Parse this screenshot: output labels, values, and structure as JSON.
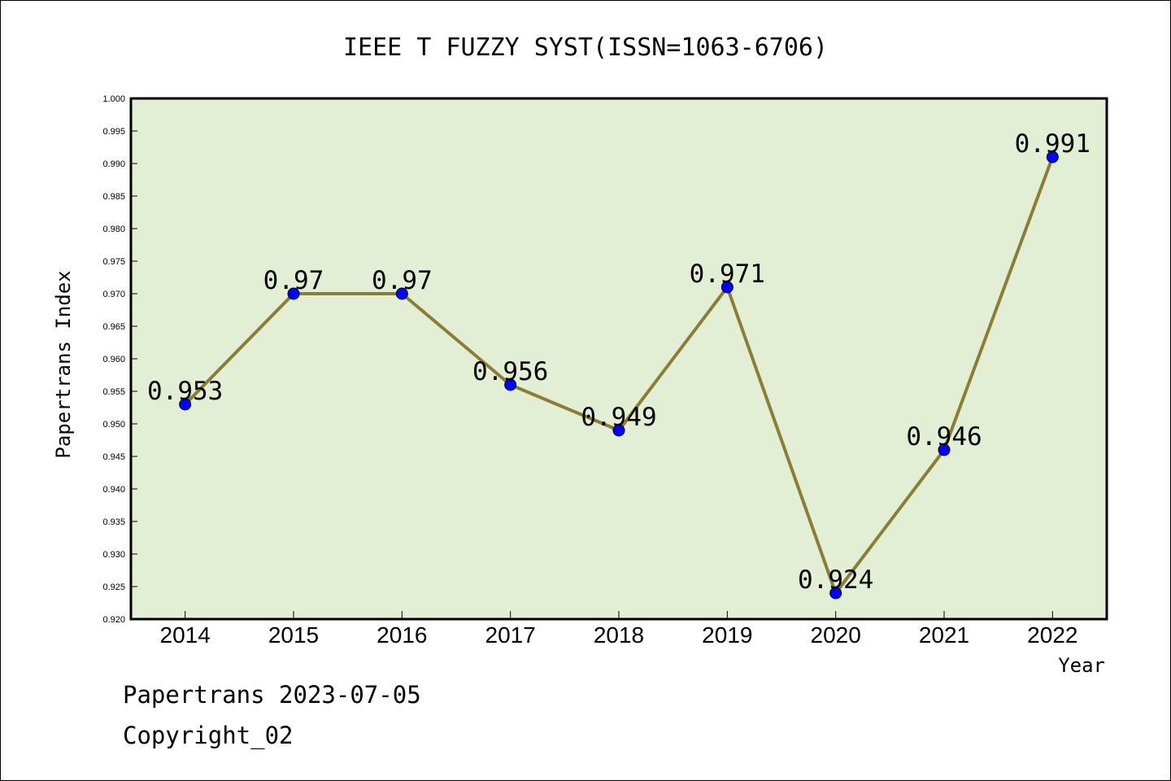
{
  "chart_data": {
    "type": "line",
    "title": "IEEE T FUZZY SYST(ISSN=1063-6706)",
    "xlabel": "Year",
    "ylabel": "Papertrans Index",
    "categories": [
      "2014",
      "2015",
      "2016",
      "2017",
      "2018",
      "2019",
      "2020",
      "2021",
      "2022"
    ],
    "values": [
      0.953,
      0.97,
      0.97,
      0.956,
      0.949,
      0.971,
      0.924,
      0.946,
      0.991
    ],
    "data_labels": [
      "0.953",
      "0.97",
      "0.97",
      "0.956",
      "0.949",
      "0.971",
      "0.924",
      "0.946",
      "0.991"
    ],
    "ylim": [
      0.92,
      1.0
    ],
    "y_ticks": [
      "0.920",
      "0.925",
      "0.930",
      "0.935",
      "0.940",
      "0.945",
      "0.950",
      "0.955",
      "0.960",
      "0.965",
      "0.970",
      "0.975",
      "0.980",
      "0.985",
      "0.990",
      "0.995",
      "1.000"
    ],
    "grid": false,
    "legend": "none",
    "colors": {
      "plot_background": "#e2efd5",
      "line": "#8b7d35",
      "marker": "#0000ff"
    }
  },
  "footer": {
    "line1": "Papertrans 2023-07-05",
    "line2": "Copyright_02"
  }
}
